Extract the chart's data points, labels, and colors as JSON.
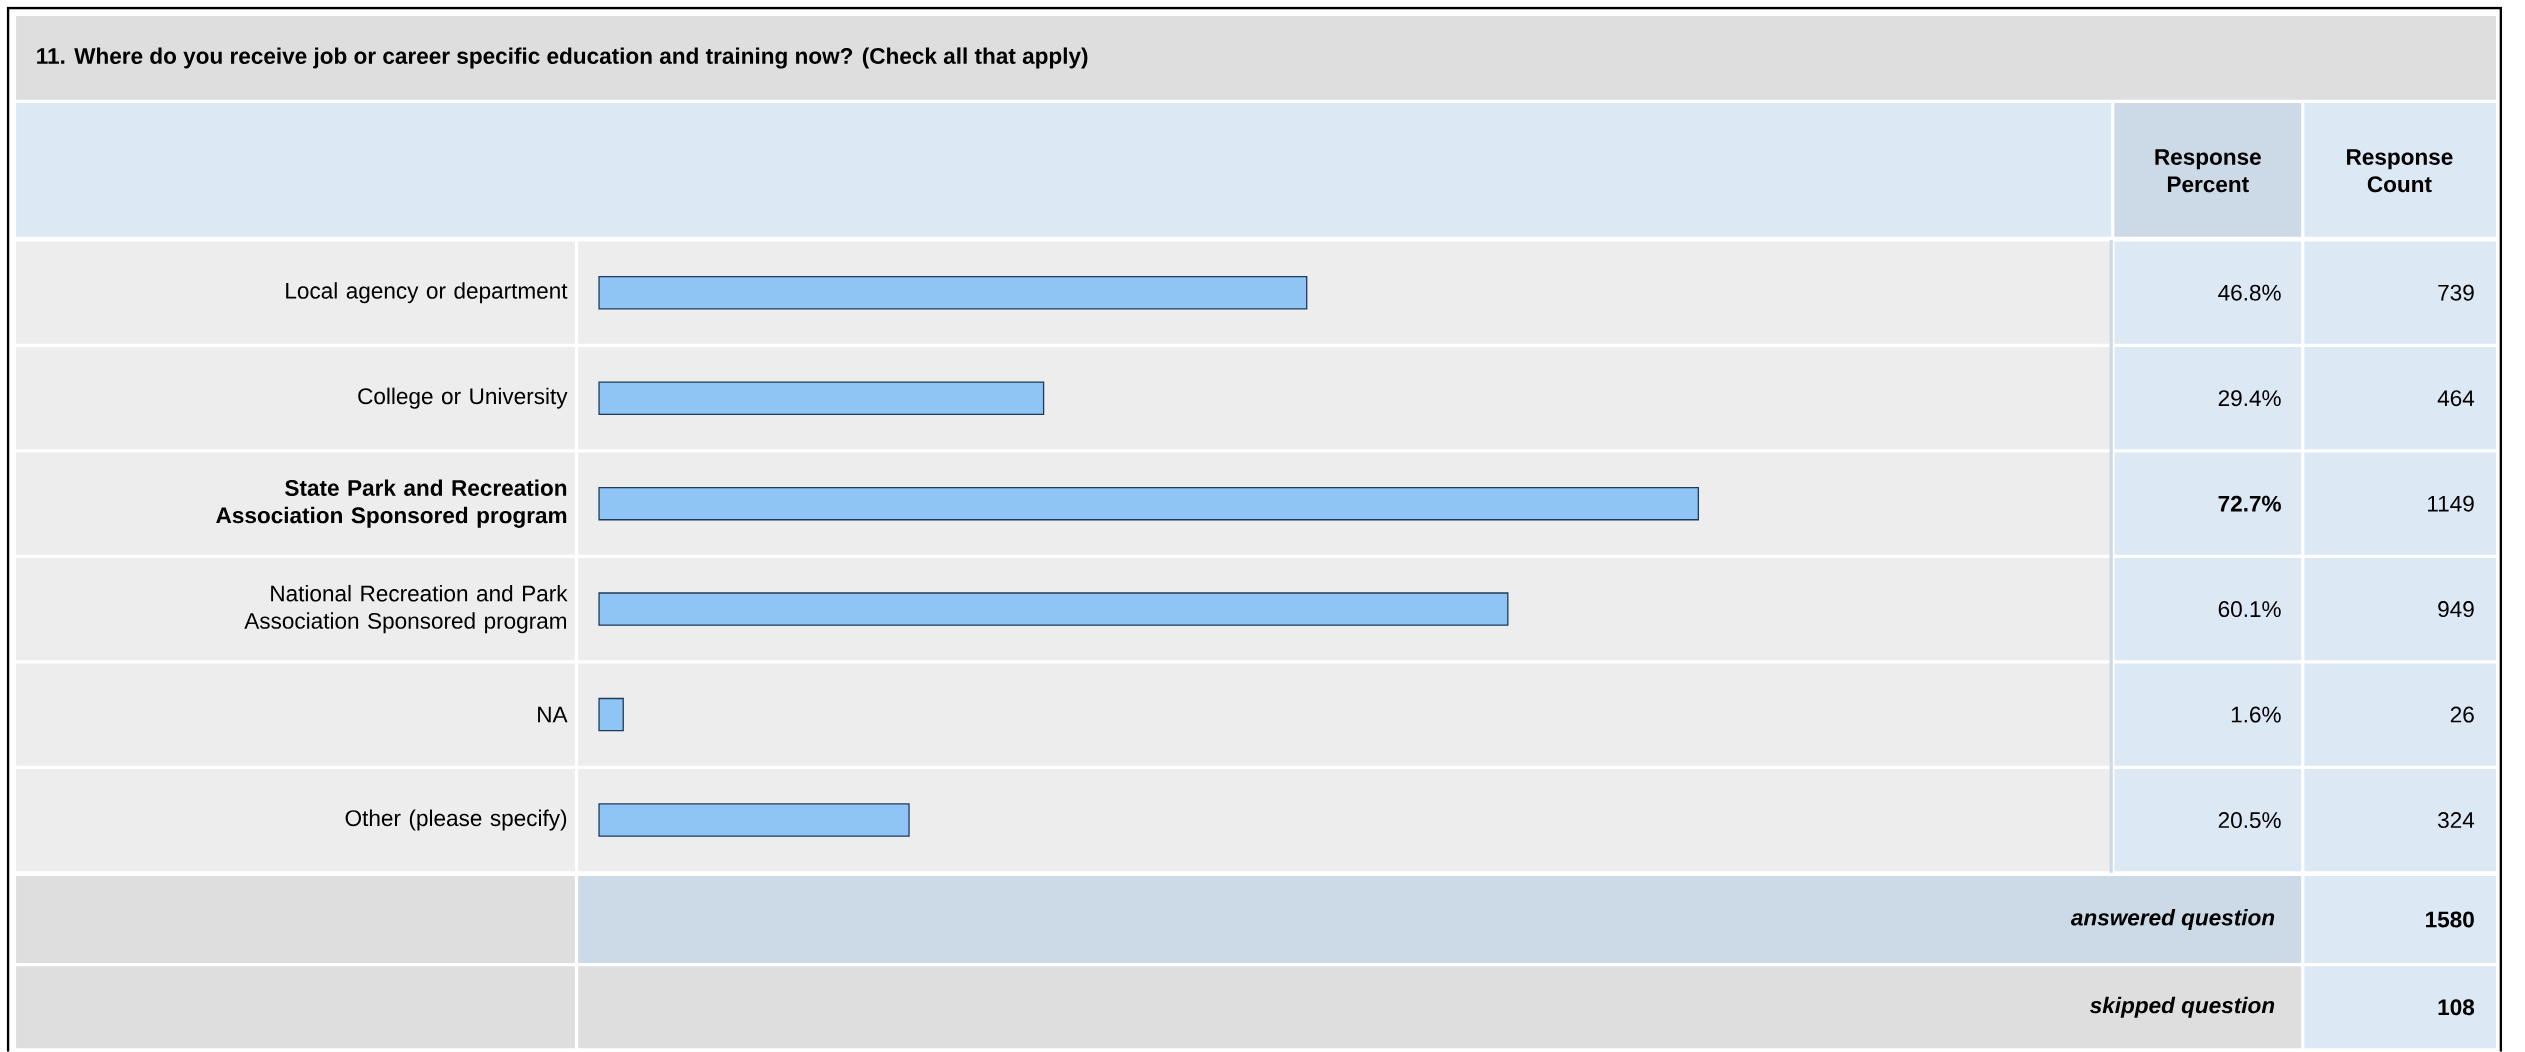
{
  "chart_data": {
    "type": "bar",
    "orientation": "horizontal",
    "title": "11. Where do you receive job or career specific education and training now? (Check all that apply)",
    "categories": [
      "Local agency or department",
      "College or University",
      "**State Park and Recreation Association Sponsored program**",
      "National Recreation and Park Association Sponsored program",
      "NA",
      "Other (please specify)"
    ],
    "series": [
      {
        "name": "Response Percent",
        "color": "#8ec5f5",
        "values": [
          46.8,
          29.4,
          72.7,
          60.1,
          1.6,
          20.5
        ],
        "value_labels": [
          "46.8%",
          "29.4%",
          "**72.7%**",
          "60.1%",
          "1.6%",
          "20.5%"
        ]
      }
    ],
    "xlim": [
      0,
      100
    ],
    "tick_labels": "y",
    "annotations": [
      "Response Count",
      "739",
      "464",
      "1149",
      "949",
      "26",
      "324",
      "answered question",
      "1580",
      "skipped question",
      "108"
    ]
  }
}
